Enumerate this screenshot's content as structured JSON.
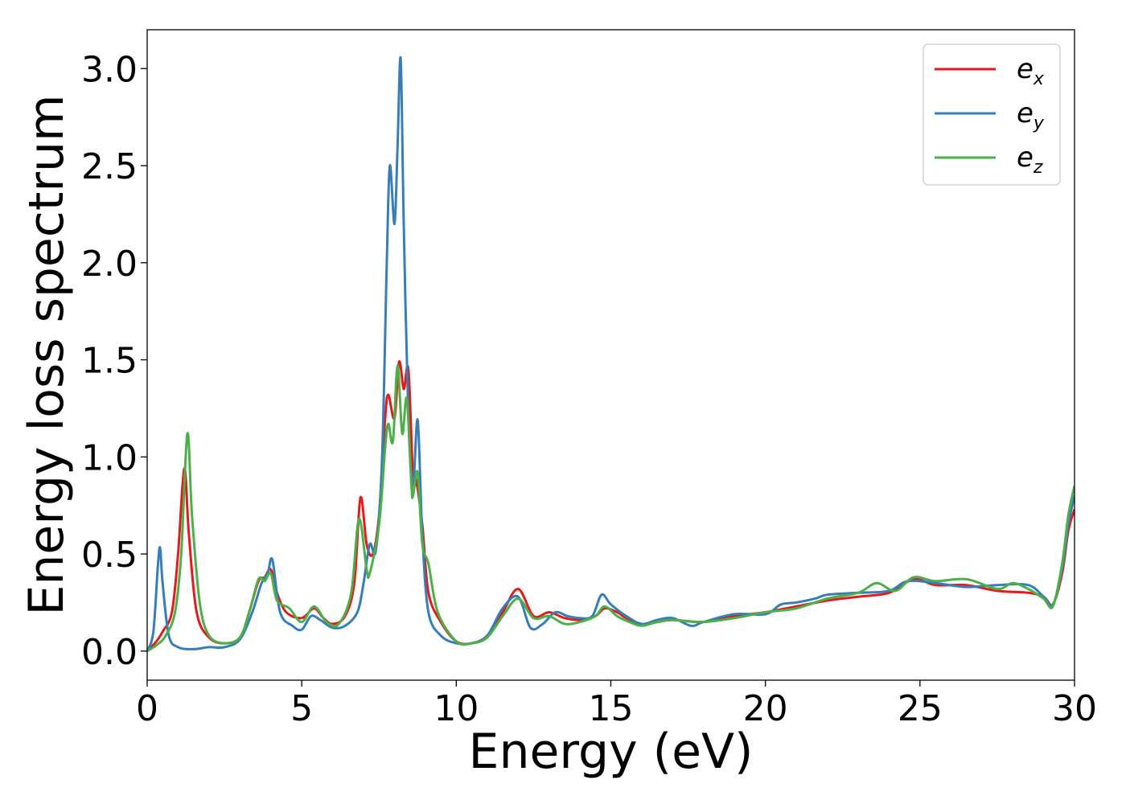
{
  "chart_data": {
    "type": "line",
    "xlabel": "Energy (eV)",
    "ylabel": "Energy loss spectrum",
    "xlim": [
      0,
      30
    ],
    "ylim": [
      -0.15,
      3.2
    ],
    "xticks": [
      0,
      5,
      10,
      15,
      20,
      25,
      30
    ],
    "xtick_labels": [
      "0",
      "5",
      "10",
      "15",
      "20",
      "25",
      "30"
    ],
    "yticks": [
      0.0,
      0.5,
      1.0,
      1.5,
      2.0,
      2.5,
      3.0
    ],
    "ytick_labels": [
      "0.0",
      "0.5",
      "1.0",
      "1.5",
      "2.0",
      "2.5",
      "3.0"
    ],
    "grid": false,
    "legend_position": "top-right",
    "series": [
      {
        "name": "e_x",
        "label_base": "e",
        "label_sub": "x",
        "color": "#e41a1c",
        "points": [
          [
            0,
            0
          ],
          [
            0.3,
            0.05
          ],
          [
            0.5,
            0.1
          ],
          [
            0.8,
            0.2
          ],
          [
            1.0,
            0.5
          ],
          [
            1.2,
            0.94
          ],
          [
            1.35,
            0.6
          ],
          [
            1.6,
            0.2
          ],
          [
            2.0,
            0.07
          ],
          [
            2.5,
            0.04
          ],
          [
            3.0,
            0.07
          ],
          [
            3.3,
            0.2
          ],
          [
            3.6,
            0.36
          ],
          [
            3.8,
            0.38
          ],
          [
            4.0,
            0.42
          ],
          [
            4.2,
            0.3
          ],
          [
            4.5,
            0.2
          ],
          [
            5.0,
            0.17
          ],
          [
            5.4,
            0.22
          ],
          [
            5.7,
            0.17
          ],
          [
            6.0,
            0.14
          ],
          [
            6.4,
            0.18
          ],
          [
            6.7,
            0.35
          ],
          [
            6.9,
            0.79
          ],
          [
            7.1,
            0.55
          ],
          [
            7.3,
            0.5
          ],
          [
            7.5,
            0.7
          ],
          [
            7.7,
            1.2
          ],
          [
            7.8,
            1.32
          ],
          [
            8.0,
            1.2
          ],
          [
            8.15,
            1.49
          ],
          [
            8.3,
            1.35
          ],
          [
            8.45,
            1.45
          ],
          [
            8.6,
            0.9
          ],
          [
            8.7,
            0.88
          ],
          [
            8.9,
            0.65
          ],
          [
            9.1,
            0.3
          ],
          [
            9.5,
            0.15
          ],
          [
            10.0,
            0.05
          ],
          [
            10.5,
            0.04
          ],
          [
            11.0,
            0.08
          ],
          [
            11.5,
            0.2
          ],
          [
            12.0,
            0.32
          ],
          [
            12.5,
            0.18
          ],
          [
            13.0,
            0.2
          ],
          [
            13.5,
            0.17
          ],
          [
            14.0,
            0.16
          ],
          [
            14.5,
            0.18
          ],
          [
            14.8,
            0.22
          ],
          [
            15.2,
            0.2
          ],
          [
            15.5,
            0.17
          ],
          [
            16.0,
            0.14
          ],
          [
            16.5,
            0.15
          ],
          [
            17.0,
            0.16
          ],
          [
            18.0,
            0.15
          ],
          [
            19.0,
            0.18
          ],
          [
            20.0,
            0.2
          ],
          [
            21.0,
            0.23
          ],
          [
            22.0,
            0.26
          ],
          [
            23.0,
            0.28
          ],
          [
            24.0,
            0.3
          ],
          [
            24.8,
            0.37
          ],
          [
            25.5,
            0.34
          ],
          [
            26.5,
            0.34
          ],
          [
            27.5,
            0.31
          ],
          [
            28.5,
            0.3
          ],
          [
            29.0,
            0.28
          ],
          [
            29.3,
            0.24
          ],
          [
            29.6,
            0.4
          ],
          [
            29.8,
            0.62
          ],
          [
            30.0,
            0.73
          ]
        ]
      },
      {
        "name": "e_y",
        "label_base": "e",
        "label_sub": "y",
        "color": "#377eb8",
        "points": [
          [
            0,
            0
          ],
          [
            0.2,
            0.1
          ],
          [
            0.35,
            0.45
          ],
          [
            0.42,
            0.53
          ],
          [
            0.5,
            0.35
          ],
          [
            0.7,
            0.08
          ],
          [
            1.0,
            0.02
          ],
          [
            1.5,
            0.01
          ],
          [
            2.0,
            0.02
          ],
          [
            2.5,
            0.02
          ],
          [
            3.0,
            0.06
          ],
          [
            3.4,
            0.2
          ],
          [
            3.7,
            0.35
          ],
          [
            3.9,
            0.4
          ],
          [
            4.05,
            0.47
          ],
          [
            4.3,
            0.2
          ],
          [
            4.7,
            0.13
          ],
          [
            5.0,
            0.11
          ],
          [
            5.3,
            0.18
          ],
          [
            5.6,
            0.16
          ],
          [
            6.0,
            0.12
          ],
          [
            6.4,
            0.13
          ],
          [
            6.8,
            0.2
          ],
          [
            7.0,
            0.35
          ],
          [
            7.2,
            0.55
          ],
          [
            7.4,
            0.52
          ],
          [
            7.6,
            1.0
          ],
          [
            7.75,
            2.0
          ],
          [
            7.85,
            2.5
          ],
          [
            8.0,
            2.2
          ],
          [
            8.1,
            2.6
          ],
          [
            8.2,
            3.05
          ],
          [
            8.3,
            2.2
          ],
          [
            8.45,
            1.2
          ],
          [
            8.6,
            0.85
          ],
          [
            8.75,
            1.19
          ],
          [
            8.9,
            0.6
          ],
          [
            9.1,
            0.2
          ],
          [
            9.5,
            0.08
          ],
          [
            10.0,
            0.04
          ],
          [
            10.5,
            0.04
          ],
          [
            11.0,
            0.08
          ],
          [
            11.5,
            0.22
          ],
          [
            12.0,
            0.28
          ],
          [
            12.4,
            0.12
          ],
          [
            12.8,
            0.14
          ],
          [
            13.2,
            0.2
          ],
          [
            13.6,
            0.18
          ],
          [
            14.0,
            0.17
          ],
          [
            14.4,
            0.18
          ],
          [
            14.7,
            0.29
          ],
          [
            15.0,
            0.24
          ],
          [
            15.5,
            0.18
          ],
          [
            16.0,
            0.14
          ],
          [
            16.5,
            0.16
          ],
          [
            17.0,
            0.17
          ],
          [
            17.6,
            0.13
          ],
          [
            18.0,
            0.15
          ],
          [
            19.0,
            0.19
          ],
          [
            20.0,
            0.19
          ],
          [
            20.5,
            0.24
          ],
          [
            21.0,
            0.25
          ],
          [
            21.6,
            0.27
          ],
          [
            22.0,
            0.29
          ],
          [
            23.0,
            0.3
          ],
          [
            24.0,
            0.31
          ],
          [
            24.6,
            0.36
          ],
          [
            25.5,
            0.35
          ],
          [
            26.5,
            0.33
          ],
          [
            27.5,
            0.34
          ],
          [
            28.5,
            0.34
          ],
          [
            29.0,
            0.28
          ],
          [
            29.3,
            0.24
          ],
          [
            29.6,
            0.42
          ],
          [
            29.8,
            0.65
          ],
          [
            30.0,
            0.8
          ]
        ]
      },
      {
        "name": "e_z",
        "label_base": "e",
        "label_sub": "z",
        "color": "#4daf4a",
        "points": [
          [
            0,
            0
          ],
          [
            0.3,
            0.03
          ],
          [
            0.6,
            0.08
          ],
          [
            0.9,
            0.2
          ],
          [
            1.1,
            0.5
          ],
          [
            1.3,
            1.12
          ],
          [
            1.45,
            0.7
          ],
          [
            1.7,
            0.25
          ],
          [
            2.0,
            0.08
          ],
          [
            2.5,
            0.04
          ],
          [
            3.0,
            0.07
          ],
          [
            3.3,
            0.2
          ],
          [
            3.6,
            0.37
          ],
          [
            3.8,
            0.36
          ],
          [
            4.0,
            0.4
          ],
          [
            4.2,
            0.26
          ],
          [
            4.6,
            0.22
          ],
          [
            5.0,
            0.15
          ],
          [
            5.4,
            0.23
          ],
          [
            5.8,
            0.15
          ],
          [
            6.2,
            0.14
          ],
          [
            6.6,
            0.3
          ],
          [
            6.85,
            0.68
          ],
          [
            7.1,
            0.42
          ],
          [
            7.2,
            0.4
          ],
          [
            7.5,
            0.65
          ],
          [
            7.7,
            1.05
          ],
          [
            7.8,
            1.17
          ],
          [
            7.95,
            1.08
          ],
          [
            8.1,
            1.47
          ],
          [
            8.25,
            1.12
          ],
          [
            8.4,
            1.3
          ],
          [
            8.55,
            0.85
          ],
          [
            8.6,
            0.8
          ],
          [
            8.75,
            0.92
          ],
          [
            8.9,
            0.55
          ],
          [
            9.1,
            0.45
          ],
          [
            9.4,
            0.2
          ],
          [
            10.0,
            0.05
          ],
          [
            10.5,
            0.04
          ],
          [
            11.0,
            0.07
          ],
          [
            11.5,
            0.18
          ],
          [
            12.0,
            0.27
          ],
          [
            12.5,
            0.17
          ],
          [
            13.0,
            0.18
          ],
          [
            13.5,
            0.14
          ],
          [
            14.0,
            0.15
          ],
          [
            14.5,
            0.18
          ],
          [
            14.8,
            0.23
          ],
          [
            15.2,
            0.18
          ],
          [
            15.6,
            0.15
          ],
          [
            16.0,
            0.13
          ],
          [
            16.5,
            0.15
          ],
          [
            17.0,
            0.16
          ],
          [
            18.0,
            0.15
          ],
          [
            19.0,
            0.17
          ],
          [
            20.0,
            0.2
          ],
          [
            21.0,
            0.22
          ],
          [
            22.0,
            0.27
          ],
          [
            23.0,
            0.3
          ],
          [
            23.6,
            0.35
          ],
          [
            24.2,
            0.31
          ],
          [
            24.8,
            0.38
          ],
          [
            25.5,
            0.36
          ],
          [
            26.5,
            0.37
          ],
          [
            27.5,
            0.32
          ],
          [
            28.0,
            0.35
          ],
          [
            28.5,
            0.32
          ],
          [
            29.0,
            0.27
          ],
          [
            29.3,
            0.23
          ],
          [
            29.6,
            0.45
          ],
          [
            29.8,
            0.7
          ],
          [
            30.0,
            0.85
          ]
        ]
      }
    ]
  }
}
